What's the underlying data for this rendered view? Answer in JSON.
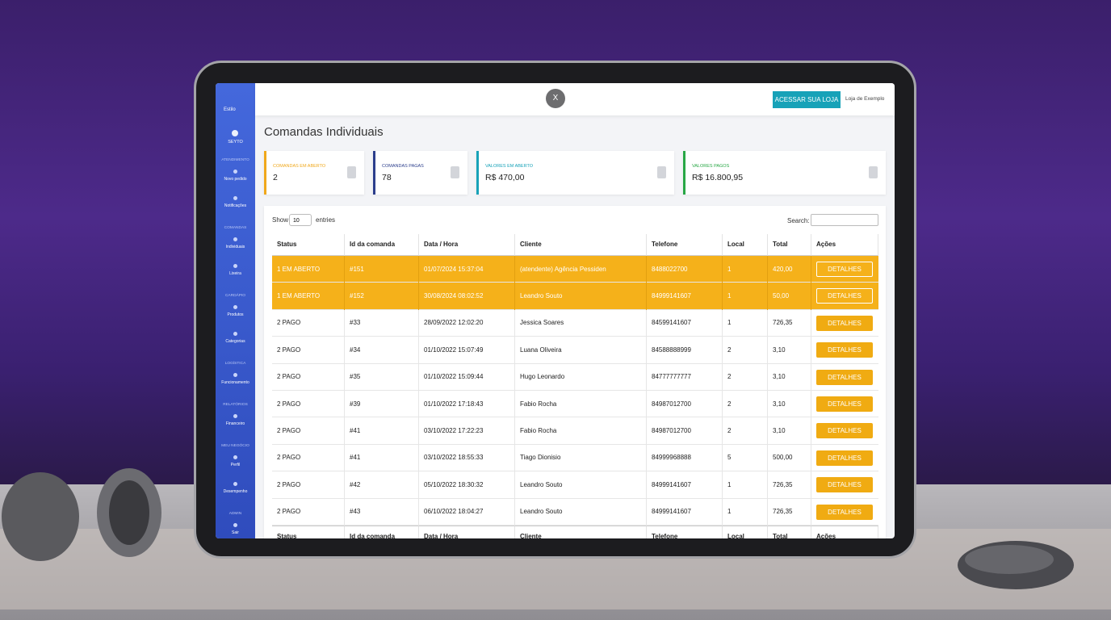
{
  "sidebar": {
    "brand": "Estilo",
    "user": "SEYTO",
    "sections": [
      {
        "heading": "ATENDIMENTO",
        "links": [
          "Novo pedido",
          "Notificações"
        ]
      },
      {
        "heading": "COMANDAS",
        "links": [
          "Individuais",
          "Lixeira"
        ]
      },
      {
        "heading": "CARDÁPIO",
        "links": [
          "Produtos",
          "Categorias"
        ]
      },
      {
        "heading": "LOGÍSTICA",
        "links": [
          "Funcionamento"
        ]
      },
      {
        "heading": "RELATÓRIOS",
        "links": [
          "Financeiro"
        ]
      },
      {
        "heading": "MEU NEGÓCIO",
        "links": [
          "Perfil",
          "Desempenho"
        ]
      },
      {
        "heading": "ADMIN",
        "links": [
          "Sair"
        ]
      }
    ]
  },
  "topbar": {
    "close": "X",
    "button": "ACESSAR SUA LOJA",
    "store": "Loja de Exemplo"
  },
  "title": "Comandas Individuais",
  "cards": [
    {
      "label": "COMANDAS EM ABERTO",
      "value": "2",
      "color": "#f0a81b"
    },
    {
      "label": "COMANDAS PAGAS",
      "value": "78",
      "color": "#2c3e8c"
    },
    {
      "label": "VALORES EM ABERTO",
      "value": "R$ 470,00",
      "color": "#17a2b8"
    },
    {
      "label": "VALORES PAGOS",
      "value": "R$ 16.800,95",
      "color": "#28a745"
    }
  ],
  "table": {
    "show": "Show",
    "page_size": "10",
    "entries": "entries",
    "search": "Search:",
    "headers": [
      "Status",
      "Id da comanda",
      "Data / Hora",
      "Cliente",
      "Telefone",
      "Local",
      "Total",
      "Ações"
    ],
    "rows": [
      [
        "1 EM ABERTO",
        "#151",
        "01/07/2024 15:37:04",
        "(atendente) Agência Pessiden",
        "8488022700",
        "1",
        "420,00",
        "DETALHES"
      ],
      [
        "1 EM ABERTO",
        "#152",
        "30/08/2024 08:02:52",
        "Leandro Souto",
        "84999141607",
        "1",
        "50,00",
        "DETALHES"
      ],
      [
        "2 PAGO",
        "#33",
        "28/09/2022 12:02:20",
        "Jessica Soares",
        "84599141607",
        "1",
        "726,35",
        "DETALHES"
      ],
      [
        "2 PAGO",
        "#34",
        "01/10/2022 15:07:49",
        "Luana Oliveira",
        "84588888999",
        "2",
        "3,10",
        "DETALHES"
      ],
      [
        "2 PAGO",
        "#35",
        "01/10/2022 15:09:44",
        "Hugo Leonardo",
        "84777777777",
        "2",
        "3,10",
        "DETALHES"
      ],
      [
        "2 PAGO",
        "#39",
        "01/10/2022 17:18:43",
        "Fabio Rocha",
        "84987012700",
        "2",
        "3,10",
        "DETALHES"
      ],
      [
        "2 PAGO",
        "#41",
        "03/10/2022 17:22:23",
        "Fabio Rocha",
        "84987012700",
        "2",
        "3,10",
        "DETALHES"
      ],
      [
        "2 PAGO",
        "#41",
        "03/10/2022 18:55:33",
        "Tiago Dionisio",
        "84999968888",
        "5",
        "500,00",
        "DETALHES"
      ],
      [
        "2 PAGO",
        "#42",
        "05/10/2022 18:30:32",
        "Leandro Souto",
        "84999141607",
        "1",
        "726,35",
        "DETALHES"
      ],
      [
        "2 PAGO",
        "#43",
        "06/10/2022 18:04:27",
        "Leandro Souto",
        "84999141607",
        "1",
        "726,35",
        "DETALHES"
      ]
    ]
  }
}
